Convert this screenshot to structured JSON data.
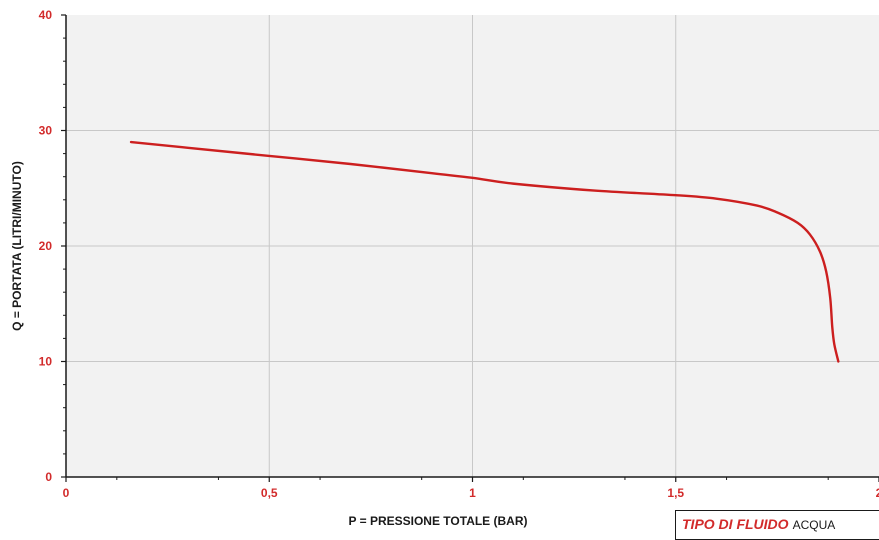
{
  "chart_data": {
    "type": "line",
    "title": "",
    "xlabel": "P = PRESSIONE TOTALE (BAR)",
    "ylabel": "Q = PORTATA (LITRI/MINUTO)",
    "xlim": [
      0,
      2
    ],
    "ylim": [
      0,
      40
    ],
    "x_ticks": [
      "0",
      "0,5",
      "1",
      "1,5",
      "2"
    ],
    "y_ticks": [
      "0",
      "10",
      "20",
      "30",
      "40"
    ],
    "grid": true,
    "colors": {
      "plot_bg": "#f2f2f2",
      "grid": "#c8c8c8",
      "line": "#cc1f1f",
      "tick_labels": "#d22b2b"
    },
    "series": [
      {
        "x": [
          0.16,
          0.3,
          0.5,
          0.7,
          0.9,
          1.0,
          1.1,
          1.3,
          1.5,
          1.6,
          1.7,
          1.75,
          1.8,
          1.83,
          1.855,
          1.87,
          1.88,
          1.885,
          1.89,
          1.9
        ],
        "y": [
          29.0,
          28.5,
          27.8,
          27.1,
          26.3,
          25.9,
          25.4,
          24.8,
          24.4,
          24.1,
          23.5,
          22.9,
          22.0,
          21.0,
          19.5,
          17.8,
          15.5,
          13.0,
          11.5,
          10.0
        ]
      }
    ]
  },
  "legend": {
    "key": "TIPO DI FLUIDO",
    "value": "ACQUA"
  }
}
